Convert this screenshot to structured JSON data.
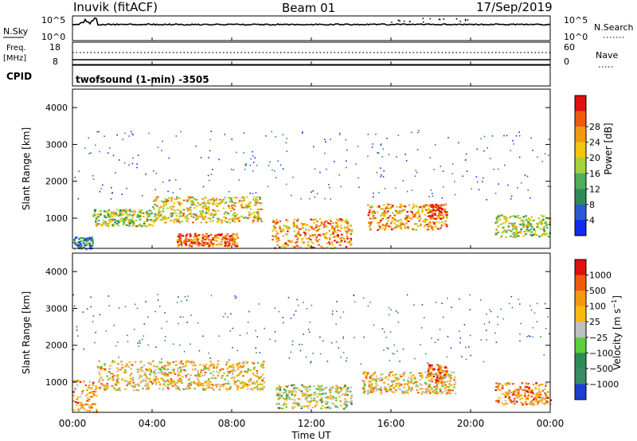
{
  "header": {
    "station": "Inuvik (fitACF)",
    "beam": "Beam 01",
    "date": "17/Sep/2019"
  },
  "strip_sky": {
    "left_label": "N.Sky",
    "left_ticks": [
      "10^5",
      "10^0"
    ],
    "right_ticks": [
      "10^5",
      "10^0"
    ],
    "right_label": "N.Search"
  },
  "strip_freq": {
    "left_label_1": "Freq.",
    "left_label_2": "[MHz]",
    "left_ticks": [
      "18",
      "8"
    ],
    "right_ticks": [
      "60",
      "0"
    ],
    "right_label": "Nave"
  },
  "cpid": {
    "label": "CPID",
    "value": "twofsound (1-min) -3505"
  },
  "chart_data": [
    {
      "type": "heatmap",
      "name": "power",
      "ylabel": "Slant Range [km]",
      "ylim": [
        180,
        4500
      ],
      "yticks": [
        "1000",
        "2000",
        "3000",
        "4000"
      ],
      "xticks": [
        "00:00",
        "04:00",
        "08:00",
        "12:00",
        "16:00",
        "20:00",
        "00:00"
      ],
      "colorbar": {
        "label": "Power [dB]",
        "ticks": [
          "4",
          "8",
          "12",
          "16",
          "20",
          "24",
          "28"
        ],
        "colors": [
          "#0f2cf0",
          "#2a5ad0",
          "#2e8b57",
          "#4fae5a",
          "#a6d23a",
          "#f3c50b",
          "#f39a12",
          "#ee5b0c",
          "#e01010"
        ]
      },
      "bands": [
        {
          "t": [
            0.0,
            1.0
          ],
          "r": [
            180,
            500
          ],
          "level": 2
        },
        {
          "t": [
            1.0,
            4.0
          ],
          "r": [
            800,
            1250
          ],
          "level": 4
        },
        {
          "t": [
            4.0,
            9.5
          ],
          "r": [
            900,
            1600
          ],
          "level": 5
        },
        {
          "t": [
            5.2,
            8.3
          ],
          "r": [
            250,
            600
          ],
          "level": 7
        },
        {
          "t": [
            10.0,
            14.0
          ],
          "r": [
            200,
            1000
          ],
          "level": 6
        },
        {
          "t": [
            14.8,
            18.8
          ],
          "r": [
            700,
            1400
          ],
          "level": 6
        },
        {
          "t": [
            17.8,
            18.6
          ],
          "r": [
            1000,
            1400
          ],
          "level": 8
        },
        {
          "t": [
            21.2,
            24.0
          ],
          "r": [
            500,
            1100
          ],
          "level": 4
        }
      ]
    },
    {
      "type": "heatmap",
      "name": "velocity",
      "ylabel": "Slant Range [km]",
      "ylim": [
        180,
        4500
      ],
      "yticks": [
        "1000",
        "2000",
        "3000",
        "4000"
      ],
      "xticks": [
        "00:00",
        "04:00",
        "08:00",
        "12:00",
        "16:00",
        "20:00",
        "00:00"
      ],
      "xlabel": "Time UT",
      "colorbar": {
        "label": "Velocity [m s^-1]",
        "ticks": [
          "1000",
          "500",
          "100",
          "25",
          "−25",
          "−100",
          "−500",
          "−1000"
        ],
        "colors": [
          "#1b3fd0",
          "#3a8a66",
          "#2e8b57",
          "#5ccf3c",
          "#c0c0c0",
          "#f8b810",
          "#f39a12",
          "#ee5b0c",
          "#e01010"
        ]
      },
      "bands": [
        {
          "t": [
            0.0,
            1.2
          ],
          "r": [
            200,
            1100
          ],
          "level": 6
        },
        {
          "t": [
            1.2,
            9.6
          ],
          "r": [
            800,
            1600
          ],
          "level": 5
        },
        {
          "t": [
            10.2,
            14.0
          ],
          "r": [
            300,
            950
          ],
          "level": 4
        },
        {
          "t": [
            14.5,
            19.2
          ],
          "r": [
            700,
            1300
          ],
          "level": 5
        },
        {
          "t": [
            17.8,
            18.8
          ],
          "r": [
            1000,
            1500
          ],
          "level": 7
        },
        {
          "t": [
            21.2,
            24.0
          ],
          "r": [
            400,
            1000
          ],
          "level": 6
        }
      ]
    }
  ]
}
